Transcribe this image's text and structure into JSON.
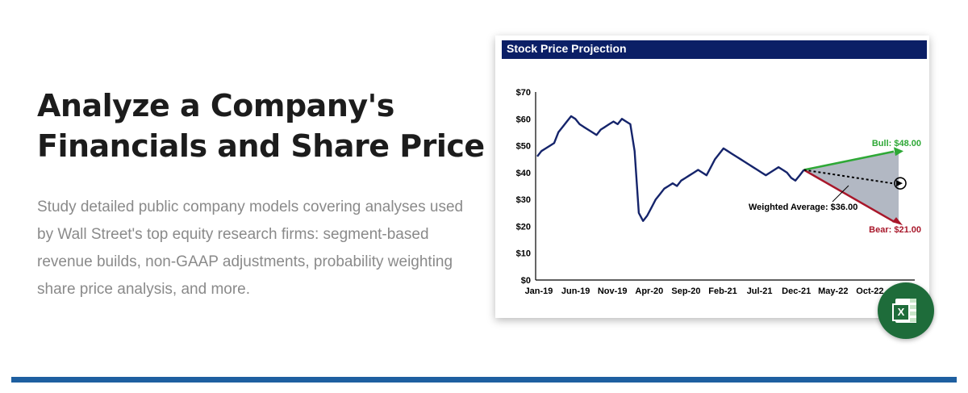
{
  "headline": {
    "line1": "Analyze a Company's",
    "line2": "Financials and Share Price"
  },
  "description": "Study detailed public company models covering analyses used by Wall Street's top equity research firms: segment-based revenue builds, non-GAAP adjustments, probability weighting share price analysis, and more.",
  "chart_card": {
    "title": "Stock Price Projection"
  },
  "chart_data": {
    "type": "line",
    "title": "Stock Price Projection",
    "xlabel": "",
    "ylabel": "",
    "ylim": [
      0,
      70
    ],
    "y_ticks": [
      "$0",
      "$10",
      "$20",
      "$30",
      "$40",
      "$50",
      "$60",
      "$70"
    ],
    "x_ticks": [
      "Jan-19",
      "Jun-19",
      "Nov-19",
      "Apr-20",
      "Sep-20",
      "Feb-21",
      "Jul-21",
      "Dec-21",
      "May-22",
      "Oct-22"
    ],
    "grid": false,
    "series": [
      {
        "values": [
          46,
          48,
          49,
          50,
          51,
          55,
          57,
          59,
          61,
          60,
          58,
          57,
          56,
          55,
          54,
          56,
          57,
          58,
          59,
          58,
          60,
          59,
          58,
          48,
          25,
          22,
          24,
          27,
          30,
          32,
          34,
          35,
          36,
          35,
          37,
          38,
          39,
          40,
          41,
          40,
          39,
          42,
          45,
          47,
          49,
          48,
          47,
          46,
          45,
          44,
          43,
          42,
          41,
          40,
          39,
          40,
          41,
          42,
          41,
          40,
          38,
          37,
          39,
          41
        ]
      }
    ],
    "projection": {
      "start": 41,
      "bull": 48,
      "bear": 21,
      "weighted_average": 36,
      "bull_label": "Bull: $48.00",
      "bear_label": "Bear: $21.00",
      "weighted_label": "Weighted Average: $36.00"
    },
    "colors": {
      "line": "#15246b",
      "bull": "#2ea836",
      "bear": "#a8172a",
      "cone": "#b2b8c3",
      "title_bar": "#0b1f66"
    }
  },
  "excel_badge": {
    "letter": "X",
    "icon": "excel-icon",
    "color": "#1e6c3a"
  },
  "accent_color": "#1e5fa0"
}
